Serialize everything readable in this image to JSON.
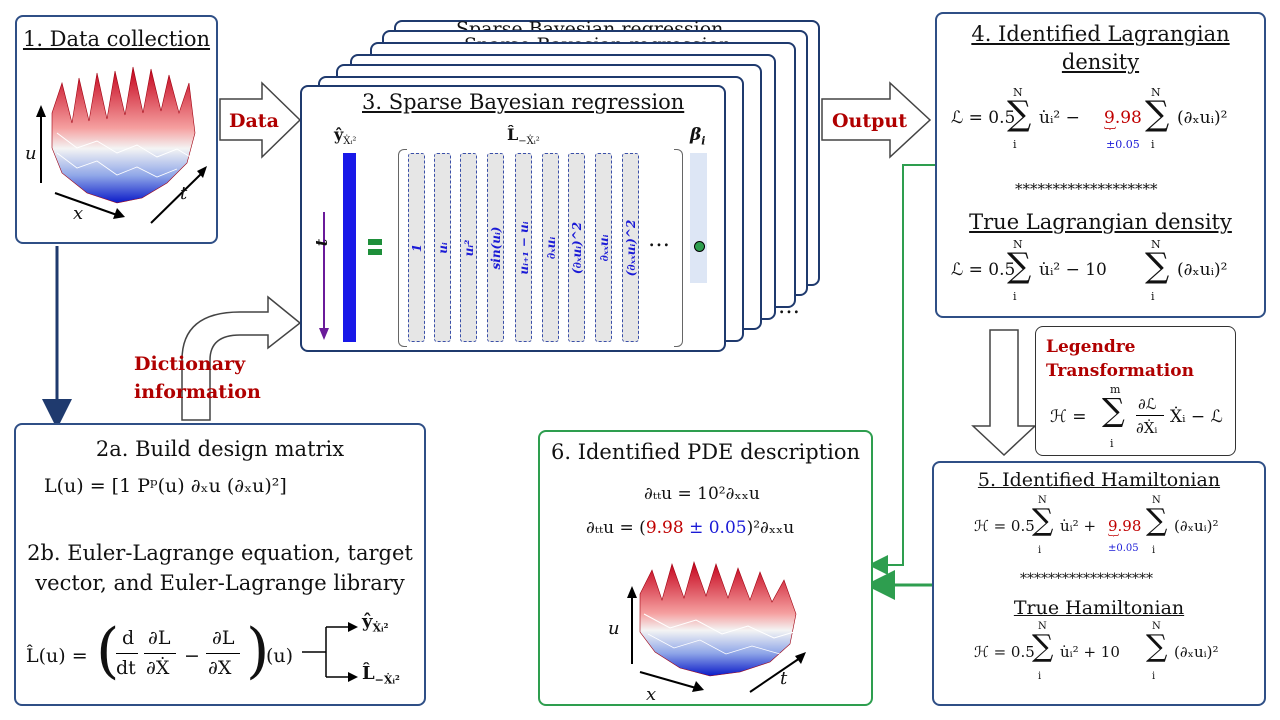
{
  "box1": {
    "title": "1. Data collection",
    "axis_u": "u",
    "axis_x": "x",
    "axis_t": "t"
  },
  "arrow_data": "Data",
  "arrow_output": "Output",
  "arrow_dict": "Dictionary information",
  "box3": {
    "title": "3. Sparse Bayesian regression",
    "back_title": "Sparse Bayesian regression",
    "y_label": "ŷ",
    "y_sub": "Ẋᵢ²",
    "L_label": "L̂",
    "L_sub": "−Ẋᵢ²",
    "beta_label": "β",
    "beta_sub": "i",
    "t_label": "t",
    "ellipsis": "…",
    "ellipsis_back": "…",
    "columns": [
      "1",
      "uᵢ",
      "uᵢ²",
      "sin(uᵢ)",
      "uᵢ₊₁ − uᵢ",
      "∂ₓuᵢ",
      "(∂ₓuᵢ)^2",
      "∂ₓₓuᵢ",
      "(∂ₓₓuᵢ)^2"
    ]
  },
  "box4": {
    "title_line1": "4. Identified Lagrangian",
    "title_line2": "density",
    "eq_identified_a": "ℒ = 0.5",
    "eq_identified_b": "u̇ᵢ² −",
    "coef": "9.98",
    "coef_err": "±0.05",
    "eq_identified_c": "(∂ₓuᵢ)²",
    "stars": "*******************",
    "true_title": "True Lagrangian  density",
    "eq_true_a": "ℒ = 0.5",
    "eq_true_b": "u̇ᵢ² − 10",
    "eq_true_c": "(∂ₓuᵢ)²",
    "sum_top": "N",
    "sum_bottom": "i"
  },
  "legendre": {
    "title_line1": "Legendre",
    "title_line2": "Transformation",
    "eq_a": "ℋ =",
    "sum_top": "m",
    "sum_bottom": "i",
    "frac_num": "∂ℒ",
    "frac_den": "∂Ẋᵢ",
    "eq_b": "Ẋᵢ − ℒ"
  },
  "box5": {
    "title": "5. Identified Hamiltonian",
    "eq_a": "ℋ = 0.5",
    "eq_b": "u̇ᵢ² +",
    "coef": "9.98",
    "coef_err": "±0.05",
    "eq_c": "(∂ₓuᵢ)²",
    "stars": "*******************",
    "true_title": "True Hamiltonian",
    "true_a": "ℋ = 0.5",
    "true_b": "u̇ᵢ² + 10",
    "true_c": "(∂ₓuᵢ)²",
    "sum_top": "N",
    "sum_bottom": "i"
  },
  "box6": {
    "title": "6. Identified PDE description",
    "eq1": "∂ₜₜu = 10²∂ₓₓu",
    "eq2_a": "∂ₜₜu = (",
    "eq2_coef": "9.98",
    "eq2_pm": " ± 0.05",
    "eq2_b": ")²∂ₓₓu",
    "axis_u": "u",
    "axis_x": "x",
    "axis_t": "t"
  },
  "box2": {
    "title_a": "2a. Build  design matrix",
    "eq_a": "L(u) = [1    Pᵖ(u)    ∂ₓu    (∂ₓu)²]",
    "title_b_line1": "2b. Euler-Lagrange equation, target",
    "title_b_line2": "vector, and Euler-Lagrange library",
    "lhs": "L̂(u) =",
    "d_num": "d",
    "d_den": "dt",
    "dl1_num": "∂L",
    "dl1_den": "∂Ẋ",
    "minus": "−",
    "dl2_num": "∂L",
    "dl2_den": "∂X",
    "rhs_u": "(u)",
    "out1": "ŷ",
    "out1_sub": "Ẋᵢ²",
    "out2": "L̂",
    "out2_sub": "−Ẋᵢ²"
  }
}
